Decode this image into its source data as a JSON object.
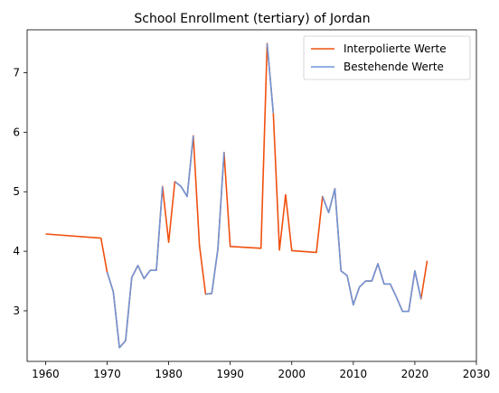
{
  "chart_data": {
    "type": "line",
    "title": "School Enrollment (tertiary) of Jordan",
    "xlabel": "",
    "ylabel": "",
    "xlim": [
      1957,
      2030
    ],
    "ylim": [
      2.15,
      7.72
    ],
    "xticks": [
      1960,
      1970,
      1980,
      1990,
      2000,
      2010,
      2020,
      2030
    ],
    "yticks": [
      3,
      4,
      5,
      6,
      7
    ],
    "grid": false,
    "legend_position": "top-right",
    "series": [
      {
        "name": "Interpolierte Werte",
        "color": "#f0500f",
        "x": [
          1960,
          1969,
          1970,
          1971,
          1972,
          1973,
          1974,
          1975,
          1976,
          1977,
          1978,
          1979,
          1980,
          1981,
          1982,
          1983,
          1984,
          1985,
          1986,
          1987,
          1988,
          1989,
          1990,
          1995,
          1996,
          1997,
          1998,
          1999,
          2000,
          2004,
          2005,
          2006,
          2007,
          2008,
          2009,
          2010,
          2011,
          2012,
          2013,
          2014,
          2015,
          2016,
          2017,
          2018,
          2019,
          2020,
          2021,
          2022
        ],
        "y": [
          4.29,
          4.22,
          3.65,
          3.32,
          2.38,
          2.5,
          3.56,
          3.76,
          3.54,
          3.68,
          3.68,
          5.09,
          4.15,
          5.17,
          5.09,
          4.92,
          5.94,
          4.1,
          3.28,
          3.29,
          4.04,
          5.66,
          4.08,
          4.05,
          7.49,
          6.32,
          4.02,
          4.95,
          4.01,
          3.98,
          4.92,
          4.65,
          5.05,
          3.67,
          3.59,
          3.1,
          3.4,
          3.5,
          3.5,
          3.79,
          3.45,
          3.45,
          3.23,
          2.99,
          2.99,
          3.67,
          3.2,
          3.84
        ]
      },
      {
        "name": "Bestehende Werte",
        "color": "#6f95d8",
        "segments": [
          {
            "x": [
              1970,
              1971,
              1972,
              1973,
              1974,
              1975,
              1976,
              1977,
              1978,
              1979
            ],
            "y": [
              3.65,
              3.32,
              2.38,
              2.5,
              3.56,
              3.76,
              3.54,
              3.68,
              3.68,
              5.09
            ]
          },
          {
            "x": [
              1981,
              1982,
              1983,
              1984
            ],
            "y": [
              5.17,
              5.09,
              4.92,
              5.94
            ]
          },
          {
            "x": [
              1986,
              1987,
              1988,
              1989
            ],
            "y": [
              3.28,
              3.29,
              4.04,
              5.66
            ]
          },
          {
            "x": [
              1996,
              1997
            ],
            "y": [
              7.49,
              6.32
            ]
          },
          {
            "x": [
              2005,
              2006,
              2007,
              2008,
              2009,
              2010,
              2011,
              2012,
              2013,
              2014,
              2015,
              2016,
              2017,
              2018,
              2019,
              2020,
              2021
            ],
            "y": [
              4.92,
              4.65,
              5.05,
              3.67,
              3.59,
              3.1,
              3.4,
              3.5,
              3.5,
              3.79,
              3.45,
              3.45,
              3.23,
              2.99,
              2.99,
              3.67,
              3.2
            ]
          }
        ]
      }
    ]
  }
}
